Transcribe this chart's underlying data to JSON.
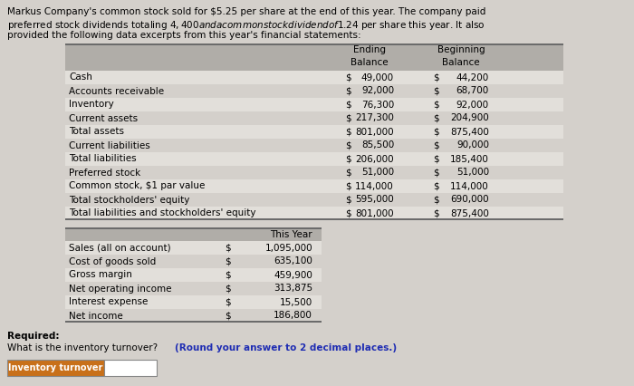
{
  "intro_line1": "Markus Company's common stock sold for $5.25 per share at the end of this year. The company paid",
  "intro_line2": "preferred stock dividends totaling $4,400 and a common stock dividend of $1.24 per share this year. It also",
  "intro_line3": "provided the following data excerpts from this year's financial statements:",
  "table1_rows": [
    [
      "Cash",
      "49,000",
      "44,200"
    ],
    [
      "Accounts receivable",
      "92,000",
      "68,700"
    ],
    [
      "Inventory",
      "76,300",
      "92,000"
    ],
    [
      "Current assets",
      "217,300",
      "204,900"
    ],
    [
      "Total assets",
      "801,000",
      "875,400"
    ],
    [
      "Current liabilities",
      "85,500",
      "90,000"
    ],
    [
      "Total liabilities",
      "206,000",
      "185,400"
    ],
    [
      "Preferred stock",
      "51,000",
      "51,000"
    ],
    [
      "Common stock, $1 par value",
      "114,000",
      "114,000"
    ],
    [
      "Total stockholders' equity",
      "595,000",
      "690,000"
    ],
    [
      "Total liabilities and stockholders' equity",
      "801,000",
      "875,400"
    ]
  ],
  "table2_rows": [
    [
      "Sales (all on account)",
      "1,095,000"
    ],
    [
      "Cost of goods sold",
      "635,100"
    ],
    [
      "Gross margin",
      "459,900"
    ],
    [
      "Net operating income",
      "313,875"
    ],
    [
      "Interest expense",
      "15,500"
    ],
    [
      "Net income",
      "186,800"
    ]
  ],
  "bg_color": "#d4d0cb",
  "table_header_bg": "#b0ada8",
  "table_row_alt_bg": "#e2dfda",
  "table_row_bg": "#d4d0cb",
  "label_btn_color": "#c8701a",
  "input_box_color": "#ffffff",
  "font_size": 7.5,
  "small_font_size": 7.0
}
